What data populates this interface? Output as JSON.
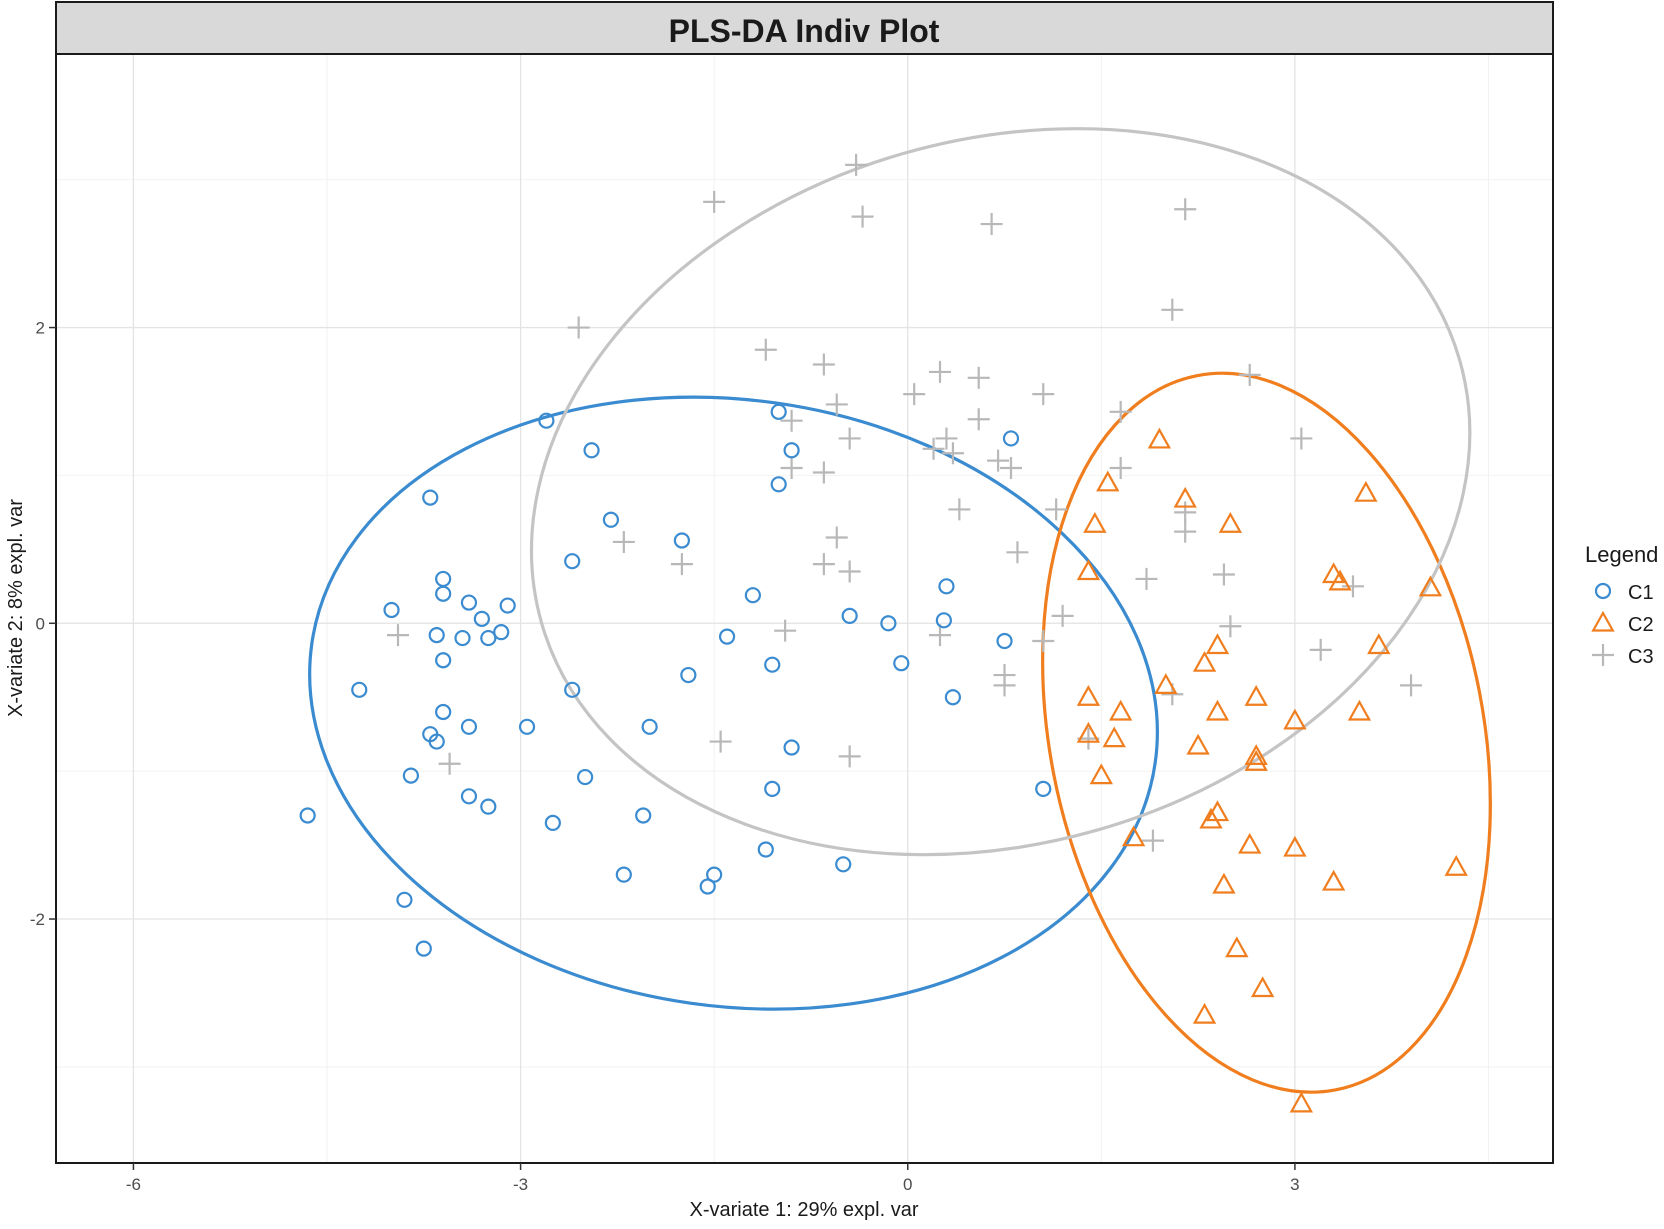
{
  "chart_data": {
    "type": "scatter",
    "title": "PLS-DA Indiv Plot",
    "xlabel": "X-variate 1: 29% expl. var",
    "ylabel": "X-variate 2: 8% expl. var",
    "xlim": [
      -6.6,
      5.0
    ],
    "ylim": [
      -3.65,
      3.85
    ],
    "x_ticks": [
      -6,
      -3,
      0,
      3
    ],
    "x_tick_labels": [
      "-6",
      "-3",
      "0",
      "3"
    ],
    "y_ticks": [
      -2,
      0,
      2
    ],
    "y_tick_labels": [
      "-2",
      "0",
      "2"
    ],
    "x_minor_gridlines": [
      -4.5,
      -1.5,
      1.5,
      4.5
    ],
    "y_minor_gridlines": [
      -3,
      -1,
      1,
      3
    ],
    "grid": true,
    "legend": {
      "title": "Legend",
      "position": "right",
      "entries": [
        {
          "label": "C1",
          "shape": "circle",
          "color": "#3a8bd0"
        },
        {
          "label": "C2",
          "shape": "triangle",
          "color": "#f07e1e"
        },
        {
          "label": "C3",
          "shape": "plus",
          "color": "#b8b8b8"
        }
      ]
    },
    "series": [
      {
        "name": "C1",
        "shape": "circle",
        "color": "#3a8bd0",
        "points": [
          [
            -2.8,
            1.37
          ],
          [
            -2.45,
            1.17
          ],
          [
            -3.7,
            0.85
          ],
          [
            -2.3,
            0.7
          ],
          [
            -1.75,
            0.56
          ],
          [
            -2.6,
            0.42
          ],
          [
            -3.6,
            0.3
          ],
          [
            -3.6,
            0.2
          ],
          [
            -3.4,
            0.14
          ],
          [
            -3.1,
            0.12
          ],
          [
            -4.0,
            0.09
          ],
          [
            -3.3,
            0.03
          ],
          [
            -3.15,
            -0.06
          ],
          [
            -3.65,
            -0.08
          ],
          [
            -3.45,
            -0.1
          ],
          [
            -3.25,
            -0.1
          ],
          [
            -3.6,
            -0.25
          ],
          [
            -4.25,
            -0.45
          ],
          [
            -2.6,
            -0.45
          ],
          [
            -3.6,
            -0.6
          ],
          [
            -3.4,
            -0.7
          ],
          [
            -2.95,
            -0.7
          ],
          [
            -2.0,
            -0.7
          ],
          [
            -3.7,
            -0.75
          ],
          [
            -3.65,
            -0.8
          ],
          [
            -3.85,
            -1.03
          ],
          [
            -2.5,
            -1.04
          ],
          [
            -3.4,
            -1.17
          ],
          [
            -3.25,
            -1.24
          ],
          [
            -2.75,
            -1.35
          ],
          [
            -2.05,
            -1.3
          ],
          [
            -4.65,
            -1.3
          ],
          [
            -2.2,
            -1.7
          ],
          [
            -1.5,
            -1.7
          ],
          [
            -1.55,
            -1.78
          ],
          [
            -3.9,
            -1.87
          ],
          [
            -3.75,
            -2.2
          ],
          [
            -1.0,
            1.43
          ],
          [
            -0.9,
            1.17
          ],
          [
            -1.0,
            0.94
          ],
          [
            -1.2,
            0.19
          ],
          [
            -1.7,
            -0.35
          ],
          [
            -1.4,
            -0.09
          ],
          [
            -1.05,
            -0.28
          ],
          [
            -0.45,
            0.05
          ],
          [
            -0.15,
            0.0
          ],
          [
            -0.05,
            -0.27
          ],
          [
            0.3,
            0.25
          ],
          [
            0.28,
            0.02
          ],
          [
            0.35,
            -0.5
          ],
          [
            0.8,
            1.25
          ],
          [
            0.75,
            -0.12
          ],
          [
            -0.9,
            -0.84
          ],
          [
            -1.05,
            -1.12
          ],
          [
            -1.1,
            -1.53
          ],
          [
            -0.5,
            -1.63
          ],
          [
            1.05,
            -1.12
          ]
        ]
      },
      {
        "name": "C2",
        "shape": "triangle",
        "color": "#f07e1e",
        "points": [
          [
            1.95,
            1.24
          ],
          [
            1.55,
            0.95
          ],
          [
            2.15,
            0.84
          ],
          [
            3.55,
            0.88
          ],
          [
            1.45,
            0.67
          ],
          [
            2.5,
            0.67
          ],
          [
            1.4,
            0.35
          ],
          [
            3.3,
            0.33
          ],
          [
            3.35,
            0.28
          ],
          [
            4.05,
            0.24
          ],
          [
            2.4,
            -0.15
          ],
          [
            3.65,
            -0.15
          ],
          [
            2.3,
            -0.27
          ],
          [
            2.0,
            -0.42
          ],
          [
            1.4,
            -0.5
          ],
          [
            1.65,
            -0.6
          ],
          [
            2.4,
            -0.6
          ],
          [
            2.7,
            -0.5
          ],
          [
            3.0,
            -0.66
          ],
          [
            3.5,
            -0.6
          ],
          [
            1.4,
            -0.75
          ],
          [
            1.6,
            -0.78
          ],
          [
            2.25,
            -0.83
          ],
          [
            2.7,
            -0.9
          ],
          [
            2.7,
            -0.94
          ],
          [
            1.5,
            -1.03
          ],
          [
            2.4,
            -1.28
          ],
          [
            2.35,
            -1.33
          ],
          [
            1.75,
            -1.45
          ],
          [
            2.65,
            -1.5
          ],
          [
            3.0,
            -1.52
          ],
          [
            4.25,
            -1.65
          ],
          [
            2.45,
            -1.77
          ],
          [
            3.3,
            -1.75
          ],
          [
            2.55,
            -2.2
          ],
          [
            2.75,
            -2.47
          ],
          [
            2.3,
            -2.65
          ],
          [
            3.05,
            -3.25
          ]
        ]
      },
      {
        "name": "C3",
        "shape": "plus",
        "color": "#b8b8b8",
        "points": [
          [
            -0.4,
            3.1
          ],
          [
            -1.5,
            2.85
          ],
          [
            -0.35,
            2.75
          ],
          [
            0.65,
            2.7
          ],
          [
            2.15,
            2.8
          ],
          [
            2.05,
            2.12
          ],
          [
            -2.55,
            2.0
          ],
          [
            -1.1,
            1.85
          ],
          [
            -0.65,
            1.75
          ],
          [
            0.25,
            1.7
          ],
          [
            0.55,
            1.66
          ],
          [
            2.65,
            1.68
          ],
          [
            0.05,
            1.55
          ],
          [
            1.05,
            1.55
          ],
          [
            -0.55,
            1.48
          ],
          [
            -0.9,
            1.37
          ],
          [
            0.55,
            1.38
          ],
          [
            1.65,
            1.43
          ],
          [
            0.3,
            1.25
          ],
          [
            -0.45,
            1.25
          ],
          [
            0.2,
            1.18
          ],
          [
            0.35,
            1.15
          ],
          [
            0.7,
            1.1
          ],
          [
            -0.9,
            1.05
          ],
          [
            -0.65,
            1.02
          ],
          [
            0.8,
            1.05
          ],
          [
            1.65,
            1.05
          ],
          [
            0.4,
            0.77
          ],
          [
            1.15,
            0.77
          ],
          [
            2.15,
            0.75
          ],
          [
            -2.2,
            0.55
          ],
          [
            -1.75,
            0.4
          ],
          [
            -0.55,
            0.58
          ],
          [
            -0.65,
            0.4
          ],
          [
            -0.45,
            0.35
          ],
          [
            0.85,
            0.48
          ],
          [
            2.15,
            0.62
          ],
          [
            1.85,
            0.3
          ],
          [
            2.45,
            0.33
          ],
          [
            3.45,
            0.25
          ],
          [
            1.2,
            0.05
          ],
          [
            2.5,
            -0.02
          ],
          [
            -3.95,
            -0.08
          ],
          [
            -0.95,
            -0.05
          ],
          [
            0.25,
            -0.08
          ],
          [
            1.05,
            -0.12
          ],
          [
            3.2,
            -0.18
          ],
          [
            0.75,
            -0.35
          ],
          [
            0.75,
            -0.42
          ],
          [
            2.05,
            -0.48
          ],
          [
            3.9,
            -0.42
          ],
          [
            -1.45,
            -0.8
          ],
          [
            -0.45,
            -0.9
          ],
          [
            -3.55,
            -0.95
          ],
          [
            1.9,
            -1.47
          ],
          [
            1.4,
            -0.78
          ],
          [
            3.05,
            1.25
          ]
        ]
      }
    ],
    "ellipses": [
      {
        "series": "C1",
        "color": "#3a8bd0",
        "center": [
          -1.35,
          -0.54
        ],
        "rx": 3.3,
        "ry": 2.05,
        "angle": 8
      },
      {
        "series": "C2",
        "color": "#f07e1e",
        "center": [
          2.78,
          -0.74
        ],
        "rx": 1.68,
        "ry": 2.46,
        "angle": -11
      },
      {
        "series": "C3",
        "color": "#c4c4c4",
        "center": [
          0.72,
          0.89
        ],
        "rx": 3.7,
        "ry": 2.38,
        "angle": -16
      }
    ]
  }
}
